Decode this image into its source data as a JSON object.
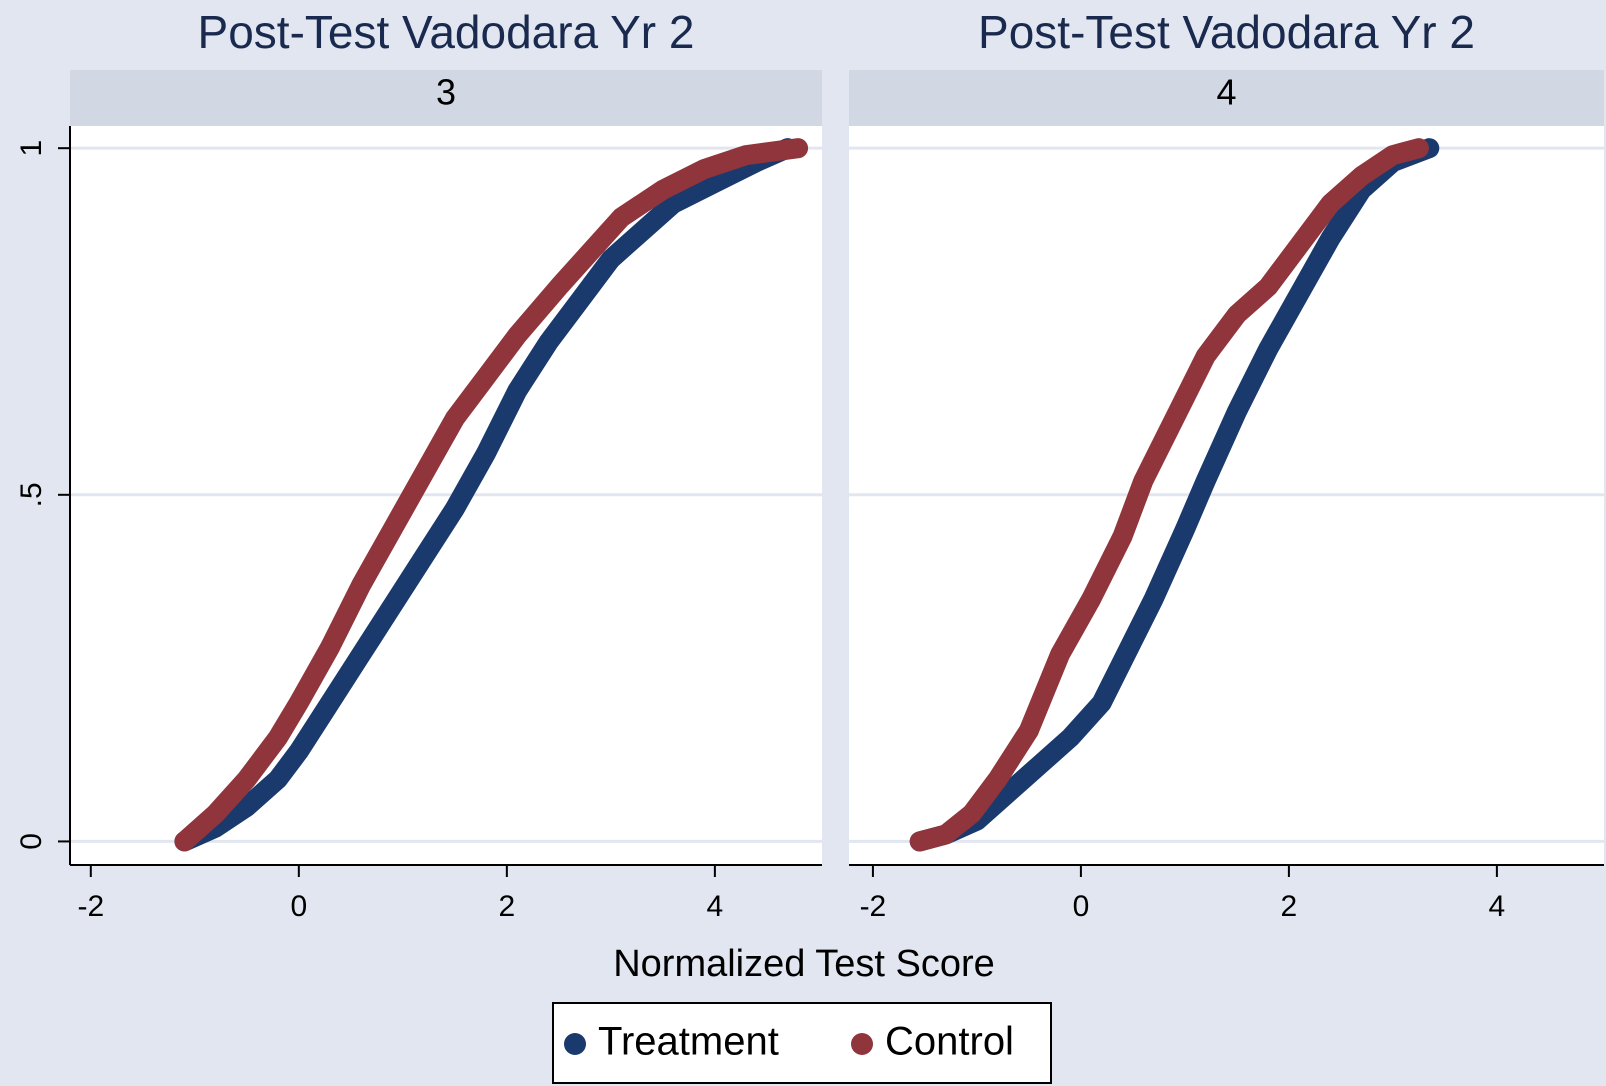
{
  "xlabel": "Normalized Test Score",
  "chart_data": [
    {
      "type": "line",
      "title": "Post-Test Vadodara Yr 2",
      "subtitle": "3",
      "xlim": [
        -2.2,
        5.03
      ],
      "ylim": [
        -0.034,
        1.032
      ],
      "xticks": [
        -2,
        0,
        2,
        4
      ],
      "yticks": [
        0,
        {
          "value": 0.5,
          "label": ".5"
        },
        1
      ],
      "grid": true,
      "series": [
        {
          "name": "Treatment",
          "color": "#1a3a6e",
          "x": [
            -1.1,
            -0.8,
            -0.5,
            -0.2,
            0,
            0.3,
            0.6,
            0.9,
            1.2,
            1.5,
            1.8,
            2.1,
            2.4,
            2.7,
            3,
            3.3,
            3.6,
            4,
            4.4,
            4.7
          ],
          "values": [
            0,
            0.02,
            0.05,
            0.09,
            0.13,
            0.2,
            0.27,
            0.34,
            0.41,
            0.48,
            0.56,
            0.65,
            0.72,
            0.78,
            0.84,
            0.88,
            0.92,
            0.95,
            0.98,
            1
          ]
        },
        {
          "name": "Control",
          "color": "#90353b",
          "x": [
            -1.1,
            -0.8,
            -0.5,
            -0.2,
            0,
            0.3,
            0.6,
            0.9,
            1.2,
            1.5,
            1.8,
            2.1,
            2.5,
            2.8,
            3.1,
            3.5,
            3.9,
            4.3,
            4.8
          ],
          "values": [
            0,
            0.04,
            0.09,
            0.15,
            0.2,
            0.28,
            0.37,
            0.45,
            0.53,
            0.61,
            0.67,
            0.73,
            0.8,
            0.85,
            0.9,
            0.94,
            0.97,
            0.99,
            1
          ]
        }
      ]
    },
    {
      "type": "line",
      "title": "Post-Test Vadodara Yr 2",
      "subtitle": "4",
      "xlim": [
        -2.23,
        5.03
      ],
      "ylim": [
        -0.034,
        1.032
      ],
      "xticks": [
        -2,
        0,
        2,
        4
      ],
      "grid": true,
      "series": [
        {
          "name": "Treatment",
          "color": "#1a3a6e",
          "x": [
            -1.55,
            -1.3,
            -1,
            -0.7,
            -0.4,
            -0.1,
            0.2,
            0.4,
            0.7,
            1,
            1.2,
            1.5,
            1.8,
            2.1,
            2.4,
            2.7,
            3,
            3.35
          ],
          "values": [
            0,
            0.01,
            0.03,
            0.07,
            0.11,
            0.15,
            0.2,
            0.26,
            0.35,
            0.45,
            0.52,
            0.62,
            0.71,
            0.79,
            0.87,
            0.94,
            0.98,
            1
          ]
        },
        {
          "name": "Control",
          "color": "#90353b",
          "x": [
            -1.55,
            -1.3,
            -1.05,
            -0.8,
            -0.5,
            -0.2,
            0.1,
            0.4,
            0.6,
            0.9,
            1.2,
            1.5,
            1.8,
            2.1,
            2.4,
            2.7,
            3,
            3.25
          ],
          "values": [
            0,
            0.01,
            0.04,
            0.09,
            0.16,
            0.27,
            0.35,
            0.44,
            0.52,
            0.61,
            0.7,
            0.76,
            0.8,
            0.86,
            0.92,
            0.96,
            0.99,
            1
          ]
        }
      ]
    }
  ]
}
